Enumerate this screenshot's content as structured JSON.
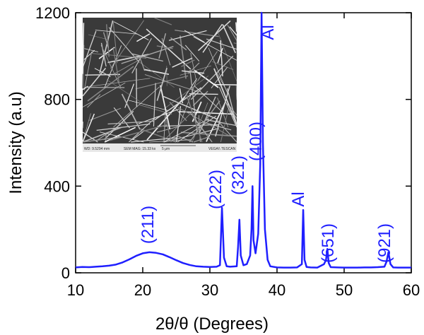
{
  "chart_data": {
    "type": "line",
    "xlabel": "2θ/θ (Degrees)",
    "ylabel": "Intensity (a.u)",
    "x": [
      10,
      11,
      12,
      13,
      14,
      15,
      16,
      17,
      18,
      19,
      20,
      21,
      22,
      23,
      24,
      25,
      26,
      27,
      28,
      29,
      30,
      31,
      31.5,
      31.8,
      32.1,
      32.5,
      33,
      34,
      34.2,
      34.4,
      34.6,
      35,
      35.5,
      36,
      36.2,
      36.35,
      36.5,
      36.8,
      37.2,
      37.5,
      37.7,
      37.9,
      38.2,
      38.6,
      39,
      40,
      41,
      42,
      43,
      43.7,
      43.9,
      44.1,
      44.4,
      45,
      46,
      47,
      47.3,
      47.5,
      47.7,
      48,
      49,
      50,
      51,
      52,
      53,
      54,
      55,
      56,
      56.3,
      56.6,
      56.9,
      57.3,
      58,
      59,
      60
    ],
    "values": [
      25,
      27,
      26,
      28,
      30,
      33,
      38,
      48,
      62,
      78,
      90,
      95,
      92,
      85,
      72,
      58,
      45,
      36,
      30,
      28,
      27,
      28,
      35,
      300,
      70,
      30,
      28,
      30,
      120,
      245,
      80,
      35,
      40,
      80,
      200,
      400,
      150,
      90,
      180,
      500,
      1200,
      600,
      200,
      60,
      30,
      25,
      24,
      24,
      25,
      40,
      290,
      60,
      27,
      25,
      24,
      40,
      60,
      110,
      45,
      26,
      25,
      24,
      24,
      24,
      25,
      25,
      26,
      28,
      50,
      95,
      40,
      25,
      24,
      24,
      24
    ],
    "color": "#1f1fff",
    "xlim": [
      10,
      60
    ],
    "xticks": [
      10,
      20,
      30,
      40,
      50,
      60
    ],
    "ylim": [
      0,
      1200
    ],
    "yticks": [
      0,
      400,
      800,
      1200
    ],
    "annotations": [
      "(211)",
      "(222)",
      "(321)",
      "(400)",
      "Al",
      "Al",
      "(651)",
      "(921)"
    ],
    "inset_labels": [
      "WD: 9.5294 mm",
      "SEM MAG: 15.33 kx",
      "5 μm",
      "VEGA\\\\ TESCAN"
    ]
  }
}
